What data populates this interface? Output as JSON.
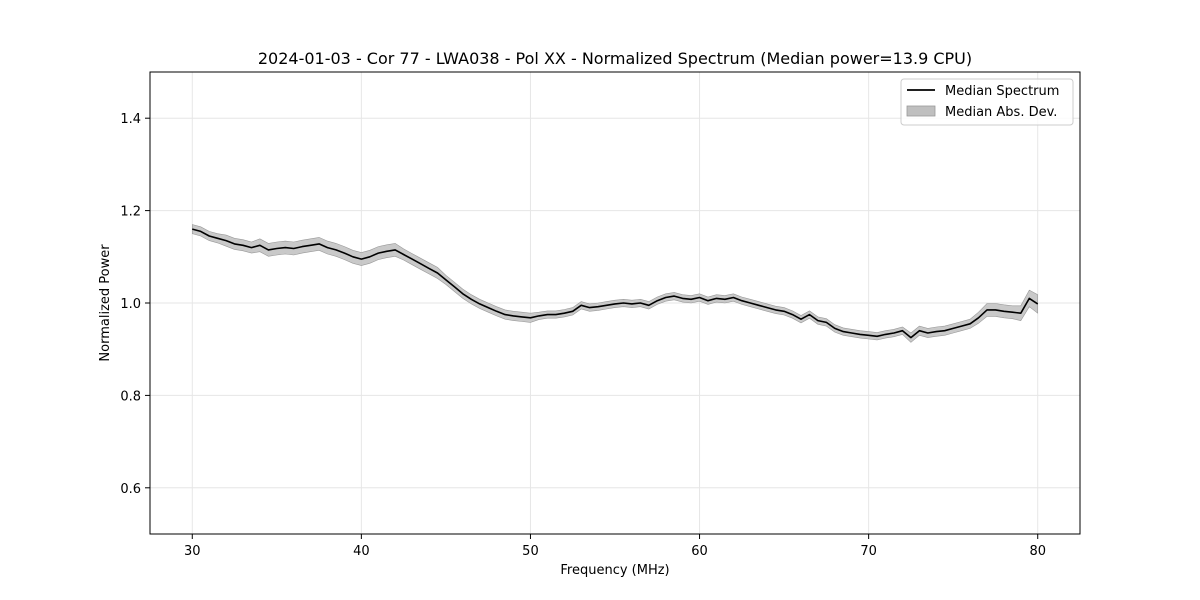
{
  "chart_data": {
    "type": "line",
    "title": "2024-01-03 - Cor 77 - LWA038 - Pol XX - Normalized Spectrum (Median power=13.9 CPU)",
    "xlabel": "Frequency (MHz)",
    "ylabel": "Normalized Power",
    "xlim": [
      27.5,
      82.5
    ],
    "ylim": [
      0.5,
      1.5
    ],
    "xticks": [
      30,
      40,
      50,
      60,
      70,
      80
    ],
    "yticks": [
      0.6,
      0.8,
      1.0,
      1.2,
      1.4
    ],
    "xtick_labels": [
      "30",
      "40",
      "50",
      "60",
      "70",
      "80"
    ],
    "ytick_labels": [
      "0.6",
      "0.8",
      "1.0",
      "1.2",
      "1.4"
    ],
    "grid": true,
    "legend_position": "top-right",
    "legend": [
      "Median Spectrum",
      "Median Abs. Dev."
    ],
    "colors": {
      "line": "#000000",
      "band": "#bfbfbf",
      "band_edge": "#999999",
      "grid": "#e6e6e6"
    },
    "series": [
      {
        "name": "Median Spectrum",
        "x": [
          30,
          30.5,
          31,
          31.5,
          32,
          32.5,
          33,
          33.5,
          34,
          34.5,
          35,
          35.5,
          36,
          36.5,
          37,
          37.5,
          38,
          38.5,
          39,
          39.5,
          40,
          40.5,
          41,
          41.5,
          42,
          42.5,
          43,
          43.5,
          44,
          44.5,
          45,
          45.5,
          46,
          46.5,
          47,
          47.5,
          48,
          48.5,
          49,
          49.5,
          50,
          50.5,
          51,
          51.5,
          52,
          52.5,
          53,
          53.5,
          54,
          54.5,
          55,
          55.5,
          56,
          56.5,
          57,
          57.5,
          58,
          58.5,
          59,
          59.5,
          60,
          60.5,
          61,
          61.5,
          62,
          62.5,
          63,
          63.5,
          64,
          64.5,
          65,
          65.5,
          66,
          66.5,
          67,
          67.5,
          68,
          68.5,
          69,
          69.5,
          70,
          70.5,
          71,
          71.5,
          72,
          72.5,
          73,
          73.5,
          74,
          74.5,
          75,
          75.5,
          76,
          76.5,
          77,
          77.5,
          78,
          78.5,
          79,
          79.5,
          80
        ],
        "values": [
          1.16,
          1.155,
          1.145,
          1.14,
          1.135,
          1.128,
          1.125,
          1.12,
          1.125,
          1.115,
          1.118,
          1.12,
          1.118,
          1.122,
          1.125,
          1.128,
          1.12,
          1.115,
          1.108,
          1.1,
          1.095,
          1.1,
          1.108,
          1.112,
          1.115,
          1.105,
          1.095,
          1.085,
          1.075,
          1.065,
          1.05,
          1.035,
          1.02,
          1.008,
          0.998,
          0.99,
          0.982,
          0.975,
          0.972,
          0.97,
          0.968,
          0.972,
          0.975,
          0.975,
          0.978,
          0.982,
          0.995,
          0.99,
          0.992,
          0.995,
          0.998,
          1.0,
          0.998,
          1.0,
          0.995,
          1.005,
          1.012,
          1.015,
          1.01,
          1.008,
          1.012,
          1.005,
          1.01,
          1.008,
          1.012,
          1.005,
          1.0,
          0.995,
          0.99,
          0.985,
          0.982,
          0.975,
          0.965,
          0.975,
          0.962,
          0.958,
          0.945,
          0.938,
          0.935,
          0.932,
          0.93,
          0.928,
          0.932,
          0.935,
          0.94,
          0.925,
          0.94,
          0.935,
          0.938,
          0.94,
          0.945,
          0.95,
          0.955,
          0.968,
          0.985,
          0.985,
          0.982,
          0.98,
          0.978,
          1.01,
          0.998
        ]
      },
      {
        "name": "Median Abs. Dev.",
        "x": [
          30,
          30.5,
          31,
          31.5,
          32,
          32.5,
          33,
          33.5,
          34,
          34.5,
          35,
          35.5,
          36,
          36.5,
          37,
          37.5,
          38,
          38.5,
          39,
          39.5,
          40,
          40.5,
          41,
          41.5,
          42,
          42.5,
          43,
          43.5,
          44,
          44.5,
          45,
          45.5,
          46,
          46.5,
          47,
          47.5,
          48,
          48.5,
          49,
          49.5,
          50,
          50.5,
          51,
          51.5,
          52,
          52.5,
          53,
          53.5,
          54,
          54.5,
          55,
          55.5,
          56,
          56.5,
          57,
          57.5,
          58,
          58.5,
          59,
          59.5,
          60,
          60.5,
          61,
          61.5,
          62,
          62.5,
          63,
          63.5,
          64,
          64.5,
          65,
          65.5,
          66,
          66.5,
          67,
          67.5,
          68,
          68.5,
          69,
          69.5,
          70,
          70.5,
          71,
          71.5,
          72,
          72.5,
          73,
          73.5,
          74,
          74.5,
          75,
          75.5,
          76,
          76.5,
          77,
          77.5,
          78,
          78.5,
          79,
          79.5,
          80
        ],
        "dev": [
          0.01,
          0.01,
          0.01,
          0.01,
          0.012,
          0.012,
          0.012,
          0.012,
          0.014,
          0.014,
          0.014,
          0.014,
          0.014,
          0.014,
          0.014,
          0.014,
          0.014,
          0.014,
          0.014,
          0.014,
          0.014,
          0.014,
          0.014,
          0.014,
          0.014,
          0.012,
          0.012,
          0.012,
          0.012,
          0.012,
          0.01,
          0.01,
          0.01,
          0.01,
          0.01,
          0.01,
          0.01,
          0.01,
          0.01,
          0.01,
          0.01,
          0.008,
          0.008,
          0.008,
          0.008,
          0.008,
          0.008,
          0.008,
          0.008,
          0.008,
          0.008,
          0.008,
          0.008,
          0.008,
          0.008,
          0.008,
          0.008,
          0.008,
          0.008,
          0.008,
          0.008,
          0.008,
          0.008,
          0.008,
          0.008,
          0.008,
          0.008,
          0.008,
          0.008,
          0.008,
          0.008,
          0.008,
          0.008,
          0.008,
          0.008,
          0.008,
          0.008,
          0.008,
          0.008,
          0.008,
          0.008,
          0.008,
          0.008,
          0.008,
          0.008,
          0.01,
          0.01,
          0.01,
          0.01,
          0.01,
          0.01,
          0.01,
          0.01,
          0.012,
          0.014,
          0.014,
          0.014,
          0.014,
          0.016,
          0.018,
          0.02
        ]
      }
    ]
  }
}
